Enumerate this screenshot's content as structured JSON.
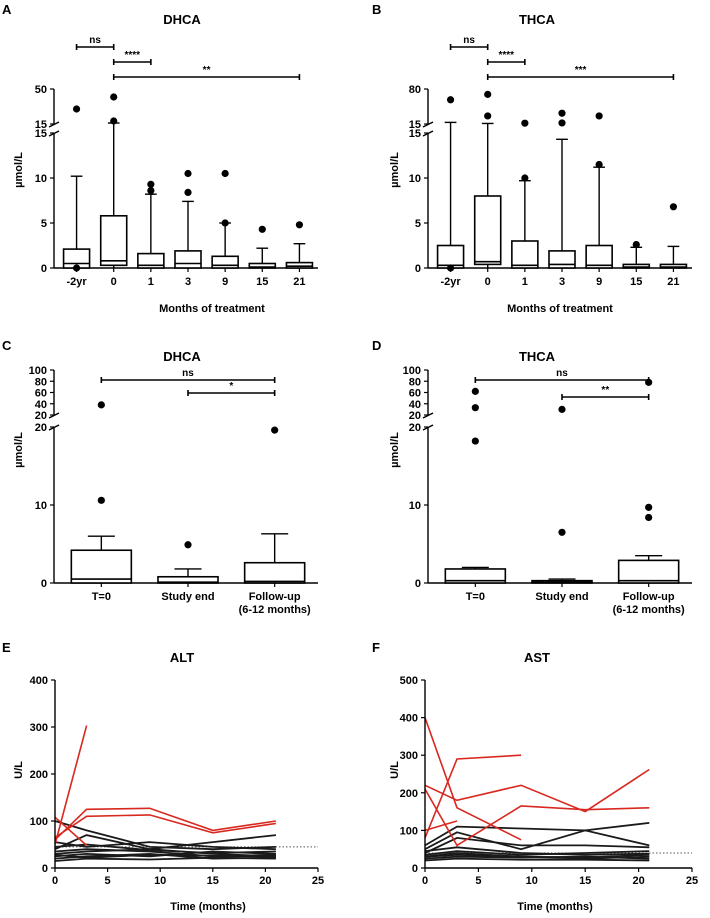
{
  "panels": [
    {
      "letter": "A",
      "chart_data": {
        "type": "box",
        "title": "DHCA",
        "xlabel": "Months of treatment",
        "ylabel": "µmol/L",
        "categories": [
          "-2yr",
          "0",
          "1",
          "3",
          "9",
          "15",
          "21"
        ],
        "y_axis": {
          "break": true,
          "lower_range": [
            0,
            15
          ],
          "upper_range": [
            15,
            50
          ],
          "lower_ticks": [
            "0",
            "5",
            "10",
            "15"
          ],
          "upper_ticks": [
            "15",
            "50"
          ]
        },
        "boxes": [
          {
            "q1": 0,
            "median": 0.5,
            "q3": 2.1,
            "whisker_low": 0,
            "whisker_high": 10.2,
            "outliers": [
              30,
              0
            ]
          },
          {
            "q1": 0.3,
            "median": 0.8,
            "q3": 5.8,
            "whisker_low": 0,
            "whisker_high": 16,
            "outliers": [
              42,
              18
            ]
          },
          {
            "q1": 0,
            "median": 0.3,
            "q3": 1.6,
            "whisker_low": 0,
            "whisker_high": 8.2,
            "outliers": [
              9.3,
              8.6
            ]
          },
          {
            "q1": 0,
            "median": 0.5,
            "q3": 1.9,
            "whisker_low": 0,
            "whisker_high": 7.4,
            "outliers": [
              10.5,
              8.4
            ]
          },
          {
            "q1": 0,
            "median": 0.3,
            "q3": 1.3,
            "whisker_low": 0,
            "whisker_high": 5,
            "outliers": [
              10.5,
              5
            ]
          },
          {
            "q1": 0,
            "median": 0.1,
            "q3": 0.5,
            "whisker_low": 0,
            "whisker_high": 2.2,
            "outliers": [
              4.3
            ]
          },
          {
            "q1": 0,
            "median": 0.2,
            "q3": 0.6,
            "whisker_low": 0,
            "whisker_high": 2.7,
            "outliers": [
              4.8
            ]
          }
        ],
        "significance": [
          {
            "from": "-2yr",
            "to": "0",
            "label": "ns"
          },
          {
            "from": "0",
            "to": "1",
            "label": "****"
          },
          {
            "from": "0",
            "to": "21",
            "label": "**"
          }
        ]
      }
    },
    {
      "letter": "B",
      "chart_data": {
        "type": "box",
        "title": "THCA",
        "xlabel": "Months of treatment",
        "ylabel": "µmol/L",
        "categories": [
          "-2yr",
          "0",
          "1",
          "3",
          "9",
          "15",
          "21"
        ],
        "y_axis": {
          "break": true,
          "lower_range": [
            0,
            15
          ],
          "upper_range": [
            15,
            80
          ],
          "lower_ticks": [
            "0",
            "5",
            "10",
            "15"
          ],
          "upper_ticks": [
            "15",
            "80"
          ]
        },
        "boxes": [
          {
            "q1": 0,
            "median": 0.3,
            "q3": 2.5,
            "whisker_low": 0,
            "whisker_high": 18,
            "outliers": [
              60,
              0
            ]
          },
          {
            "q1": 0.4,
            "median": 0.7,
            "q3": 8,
            "whisker_low": 0,
            "whisker_high": 16,
            "outliers": [
              70,
              30
            ]
          },
          {
            "q1": 0,
            "median": 0.3,
            "q3": 3,
            "whisker_low": 0,
            "whisker_high": 9.7,
            "outliers": [
              16.5,
              10
            ]
          },
          {
            "q1": 0,
            "median": 0.4,
            "q3": 1.9,
            "whisker_low": 0,
            "whisker_high": 14.3,
            "outliers": [
              35,
              17
            ]
          },
          {
            "q1": 0,
            "median": 0.3,
            "q3": 2.5,
            "whisker_low": 0,
            "whisker_high": 11.2,
            "outliers": [
              30,
              11.5
            ]
          },
          {
            "q1": 0,
            "median": 0.1,
            "q3": 0.4,
            "whisker_low": 0,
            "whisker_high": 2.3,
            "outliers": [
              2.6
            ]
          },
          {
            "q1": 0,
            "median": 0.1,
            "q3": 0.4,
            "whisker_low": 0,
            "whisker_high": 2.4,
            "outliers": [
              6.8
            ]
          }
        ],
        "significance": [
          {
            "from": "-2yr",
            "to": "0",
            "label": "ns"
          },
          {
            "from": "0",
            "to": "1",
            "label": "****"
          },
          {
            "from": "0",
            "to": "21",
            "label": "***"
          }
        ]
      }
    },
    {
      "letter": "C",
      "chart_data": {
        "type": "box",
        "title": "DHCA",
        "xlabel": "",
        "ylabel": "µmol/L",
        "categories": [
          "T=0",
          "Study end",
          "Follow-up|(6-12 months)"
        ],
        "y_axis": {
          "break": true,
          "lower_range": [
            0,
            20
          ],
          "upper_range": [
            20,
            100
          ],
          "lower_ticks": [
            "0",
            "10",
            "20"
          ],
          "upper_ticks": [
            "20",
            "40",
            "60",
            "80",
            "100"
          ]
        },
        "boxes": [
          {
            "q1": 0,
            "median": 0.5,
            "q3": 4.2,
            "whisker_low": 0,
            "whisker_high": 6,
            "outliers": [
              38,
              10.6
            ]
          },
          {
            "q1": 0,
            "median": 0.1,
            "q3": 0.8,
            "whisker_low": 0,
            "whisker_high": 1.8,
            "outliers": [
              4.9
            ]
          },
          {
            "q1": 0,
            "median": 0.2,
            "q3": 2.6,
            "whisker_low": 0,
            "whisker_high": 6.3,
            "outliers": [
              19.6
            ]
          }
        ],
        "significance": [
          {
            "from": "T=0",
            "to": "Follow-up|(6-12 months)",
            "label": "ns"
          },
          {
            "from": "Study end",
            "to": "Follow-up|(6-12 months)",
            "label": "*"
          }
        ]
      }
    },
    {
      "letter": "D",
      "chart_data": {
        "type": "box",
        "title": "THCA",
        "xlabel": "",
        "ylabel": "µmol/L",
        "categories": [
          "T=0",
          "Study end",
          "Follow-up|(6-12 months)"
        ],
        "y_axis": {
          "break": true,
          "lower_range": [
            0,
            20
          ],
          "upper_range": [
            20,
            100
          ],
          "lower_ticks": [
            "0",
            "10",
            "20"
          ],
          "upper_ticks": [
            "20",
            "40",
            "60",
            "80",
            "100"
          ]
        },
        "boxes": [
          {
            "q1": 0,
            "median": 0.3,
            "q3": 1.8,
            "whisker_low": 0,
            "whisker_high": 2,
            "outliers": [
              62,
              33,
              18.2
            ]
          },
          {
            "q1": 0,
            "median": 0.1,
            "q3": 0.3,
            "whisker_low": 0,
            "whisker_high": 0.5,
            "outliers": [
              30,
              6.5
            ]
          },
          {
            "q1": 0,
            "median": 0.3,
            "q3": 2.9,
            "whisker_low": 0,
            "whisker_high": 3.5,
            "outliers": [
              78,
              9.7,
              8.4
            ]
          }
        ],
        "significance": [
          {
            "from": "T=0",
            "to": "Follow-up|(6-12 months)",
            "label": "ns"
          },
          {
            "from": "Study end",
            "to": "Follow-up|(6-12 months)",
            "label": "**"
          }
        ]
      }
    },
    {
      "letter": "E",
      "chart_data": {
        "type": "line",
        "title": "ALT",
        "xlabel": "Time (months)",
        "ylabel": "U/L",
        "xlim": [
          0,
          25
        ],
        "ylim": [
          0,
          400
        ],
        "xticks": [
          "0",
          "5",
          "10",
          "15",
          "20",
          "25"
        ],
        "yticks": [
          "0",
          "100",
          "200",
          "300",
          "400"
        ],
        "reference_line": 45,
        "colors": {
          "elevated": "#d8281f",
          "normal": "#1a1a1a"
        },
        "series": [
          {
            "group": "elevated",
            "x": [
              0,
              3
            ],
            "y": [
              50,
              303
            ]
          },
          {
            "group": "elevated",
            "x": [
              0,
              3,
              9,
              15,
              21
            ],
            "y": [
              60,
              125,
              127,
              80,
              100
            ]
          },
          {
            "group": "elevated",
            "x": [
              0,
              3,
              9,
              15,
              21
            ],
            "y": [
              65,
              110,
              113,
              75,
              95
            ]
          },
          {
            "group": "elevated",
            "x": [
              0,
              3
            ],
            "y": [
              108,
              48
            ]
          },
          {
            "group": "normal",
            "x": [
              0,
              3,
              9,
              15,
              21
            ],
            "y": [
              100,
              80,
              45,
              40,
              45
            ]
          },
          {
            "group": "normal",
            "x": [
              0,
              3,
              9,
              15,
              21
            ],
            "y": [
              40,
              70,
              40,
              55,
              70
            ]
          },
          {
            "group": "normal",
            "x": [
              0,
              3,
              9,
              15,
              21
            ],
            "y": [
              55,
              45,
              55,
              45,
              40
            ]
          },
          {
            "group": "normal",
            "x": [
              0,
              3,
              9,
              15,
              21
            ],
            "y": [
              30,
              35,
              40,
              30,
              25
            ]
          },
          {
            "group": "normal",
            "x": [
              0,
              3,
              9,
              15,
              21
            ],
            "y": [
              25,
              30,
              25,
              35,
              30
            ]
          },
          {
            "group": "normal",
            "x": [
              0,
              3,
              9,
              15,
              21
            ],
            "y": [
              20,
              25,
              30,
              20,
              22
            ]
          },
          {
            "group": "normal",
            "x": [
              0,
              3,
              9,
              15,
              21
            ],
            "y": [
              35,
              40,
              35,
              25,
              28
            ]
          },
          {
            "group": "normal",
            "x": [
              0,
              3,
              9,
              15,
              21
            ],
            "y": [
              15,
              20,
              18,
              22,
              20
            ]
          },
          {
            "group": "normal",
            "x": [
              0,
              3,
              9,
              15,
              21
            ],
            "y": [
              28,
              22,
              28,
              26,
              24
            ]
          },
          {
            "group": "normal",
            "x": [
              0,
              3,
              9,
              15,
              21
            ],
            "y": [
              45,
              50,
              38,
              32,
              35
            ]
          }
        ]
      }
    },
    {
      "letter": "F",
      "chart_data": {
        "type": "line",
        "title": "AST",
        "xlabel": "Time (months)",
        "ylabel": "U/L",
        "xlim": [
          0,
          25
        ],
        "ylim": [
          0,
          500
        ],
        "xticks": [
          "0",
          "5",
          "10",
          "15",
          "20",
          "25"
        ],
        "yticks": [
          "0",
          "100",
          "200",
          "300",
          "400",
          "500"
        ],
        "reference_line": 40,
        "colors": {
          "elevated": "#d8281f",
          "normal": "#1a1a1a"
        },
        "series": [
          {
            "group": "elevated",
            "x": [
              0,
              3,
              9
            ],
            "y": [
              400,
              160,
              75
            ]
          },
          {
            "group": "elevated",
            "x": [
              0,
              3,
              9
            ],
            "y": [
              80,
              290,
              300
            ]
          },
          {
            "group": "elevated",
            "x": [
              0,
              3,
              9,
              15,
              21
            ],
            "y": [
              220,
              180,
              220,
              150,
              262
            ]
          },
          {
            "group": "elevated",
            "x": [
              0,
              3,
              9,
              15,
              21
            ],
            "y": [
              210,
              60,
              165,
              155,
              160
            ]
          },
          {
            "group": "elevated",
            "x": [
              0,
              3
            ],
            "y": [
              100,
              125
            ]
          },
          {
            "group": "normal",
            "x": [
              0,
              3,
              9,
              15,
              21
            ],
            "y": [
              60,
              110,
              105,
              100,
              120
            ]
          },
          {
            "group": "normal",
            "x": [
              0,
              3,
              9,
              15,
              21
            ],
            "y": [
              50,
              95,
              50,
              100,
              60
            ]
          },
          {
            "group": "normal",
            "x": [
              0,
              3,
              9,
              15,
              21
            ],
            "y": [
              40,
              80,
              60,
              60,
              55
            ]
          },
          {
            "group": "normal",
            "x": [
              0,
              3,
              9,
              15,
              21
            ],
            "y": [
              35,
              45,
              35,
              40,
              45
            ]
          },
          {
            "group": "normal",
            "x": [
              0,
              3,
              9,
              15,
              21
            ],
            "y": [
              30,
              40,
              30,
              25,
              30
            ]
          },
          {
            "group": "normal",
            "x": [
              0,
              3,
              9,
              15,
              21
            ],
            "y": [
              25,
              30,
              28,
              30,
              25
            ]
          },
          {
            "group": "normal",
            "x": [
              0,
              3,
              9,
              15,
              21
            ],
            "y": [
              20,
              25,
              22,
              22,
              20
            ]
          },
          {
            "group": "normal",
            "x": [
              0,
              3,
              9,
              15,
              21
            ],
            "y": [
              45,
              55,
              40,
              35,
              38
            ]
          },
          {
            "group": "normal",
            "x": [
              0,
              3,
              9,
              15,
              21
            ],
            "y": [
              30,
              35,
              30,
              28,
              35
            ]
          }
        ]
      }
    }
  ]
}
